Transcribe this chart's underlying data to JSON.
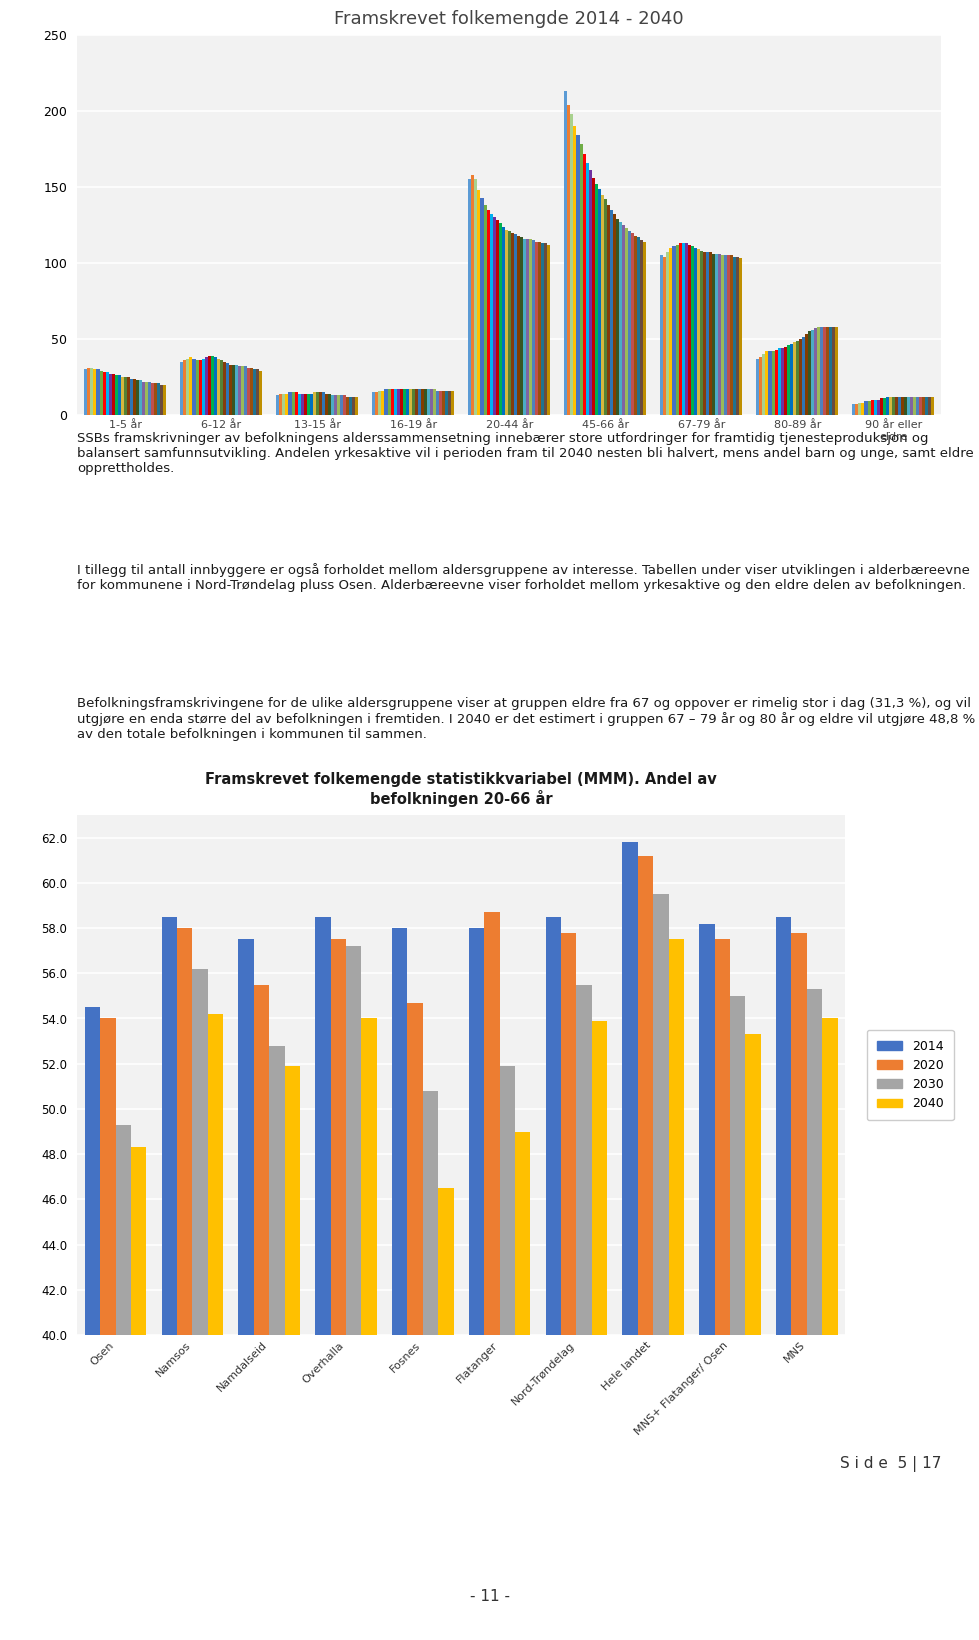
{
  "top_chart": {
    "title": "Framskrevet folkemengde 2014 - 2040",
    "categories": [
      "1-5 år",
      "6-12 år",
      "13-15 år",
      "16-19 år",
      "20-44 år",
      "45-66 år",
      "67-79 år",
      "80-89 år",
      "90 år eller\neldre"
    ],
    "ylim": [
      0,
      250
    ],
    "yticks": [
      0,
      50,
      100,
      150,
      200,
      250
    ],
    "num_bars_per_group": 27,
    "group_data": {
      "1-5 ar": [
        30,
        31,
        31,
        30,
        30,
        29,
        28,
        28,
        27,
        27,
        26,
        26,
        25,
        25,
        25,
        24,
        24,
        23,
        23,
        22,
        22,
        22,
        21,
        21,
        21,
        20,
        20
      ],
      "6-12 ar": [
        35,
        36,
        37,
        38,
        37,
        36,
        36,
        37,
        38,
        39,
        39,
        38,
        37,
        36,
        35,
        34,
        33,
        33,
        33,
        32,
        32,
        32,
        31,
        31,
        30,
        30,
        29
      ],
      "13-15 ar": [
        13,
        14,
        14,
        14,
        15,
        15,
        15,
        14,
        14,
        14,
        14,
        14,
        15,
        15,
        15,
        15,
        14,
        14,
        13,
        13,
        13,
        13,
        13,
        12,
        12,
        12,
        12
      ],
      "16-19 ar": [
        15,
        15,
        16,
        16,
        17,
        17,
        17,
        17,
        17,
        17,
        17,
        17,
        17,
        17,
        17,
        17,
        17,
        17,
        17,
        17,
        17,
        16,
        16,
        16,
        16,
        16,
        16
      ],
      "20-44 ar": [
        155,
        158,
        155,
        148,
        143,
        138,
        135,
        132,
        130,
        128,
        126,
        124,
        122,
        121,
        120,
        119,
        118,
        117,
        116,
        116,
        116,
        115,
        114,
        114,
        113,
        113,
        112
      ],
      "45-66 ar": [
        213,
        204,
        198,
        190,
        184,
        178,
        172,
        166,
        161,
        156,
        152,
        149,
        145,
        142,
        138,
        135,
        132,
        129,
        127,
        125,
        123,
        121,
        120,
        118,
        117,
        115,
        114
      ],
      "67-79 ar": [
        105,
        104,
        107,
        110,
        111,
        112,
        113,
        113,
        113,
        112,
        111,
        110,
        109,
        108,
        107,
        107,
        107,
        106,
        106,
        106,
        105,
        105,
        105,
        105,
        104,
        104,
        103
      ],
      "80-89 ar": [
        37,
        38,
        40,
        42,
        42,
        42,
        43,
        44,
        44,
        45,
        46,
        47,
        48,
        49,
        50,
        51,
        53,
        55,
        56,
        57,
        58,
        58,
        58,
        58,
        58,
        58,
        58
      ],
      "90 ar eldre": [
        7,
        7,
        8,
        8,
        9,
        9,
        10,
        10,
        10,
        11,
        11,
        12,
        12,
        12,
        12,
        12,
        12,
        12,
        12,
        12,
        12,
        12,
        12,
        12,
        12,
        12,
        12
      ]
    },
    "bar_colors": [
      "#5b9bd5",
      "#ed7d31",
      "#a9d18e",
      "#ffc000",
      "#4472c4",
      "#70ad47",
      "#ff0000",
      "#00b0f0",
      "#7030a0",
      "#c00000",
      "#00b050",
      "#0070c0",
      "#d6b83e",
      "#548235",
      "#843c0c",
      "#2e75b6",
      "#833c00",
      "#375623",
      "#4bacc6",
      "#8064a2",
      "#9bbb59",
      "#4f81bd",
      "#c0504d",
      "#9b4f0e",
      "#1f7391",
      "#6b4b3e",
      "#bf8f00"
    ]
  },
  "paragraph_text": [
    "SSBs framskrivninger av befolkningens alderssammensetning innebærer store utfordringer for framtidig tjenesteproduksjon og balansert samfunnsutvikling. Andelen yrkesaktive vil i perioden fram til 2040 nesten bli halvert, mens andel barn og unge, samt eldre opprettholdes.",
    "I tillegg til antall innbyggere er også forholdet mellom aldersgruppene av interesse. Tabellen under viser utviklingen i alderbæreevne for kommunene i Nord-Trøndelag pluss Osen. Alderbæreevne viser forholdet mellom yrkesaktive og den eldre delen av befolkningen.",
    "Befolkningsframskrivingene for de ulike aldersgruppene viser at gruppen eldre fra 67 og oppover er rimelig stor i dag (31,3 %), og vil utgjøre en enda større del av befolkningen i fremtiden. I 2040 er det estimert i gruppen 67 – 79 år og 80 år og eldre vil utgjøre 48,8 % av den totale befolkningen i kommunen til sammen."
  ],
  "bottom_chart": {
    "title": "Framskrevet folkemengde statistikkvariabel (MMM). Andel av\nbefolkningen 20-66 år",
    "categories": [
      "Osen",
      "Namsos",
      "Namdalseid",
      "Overhalla",
      "Fosnes",
      "Flatanger",
      "Nord-Trøndelag",
      "Hele landet",
      "MNS+ Flatanger/ Osen",
      "MNS"
    ],
    "years": [
      "2014",
      "2020",
      "2030",
      "2040"
    ],
    "colors": [
      "#4472c4",
      "#ed7d31",
      "#a5a5a5",
      "#ffc000"
    ],
    "ylim": [
      40.0,
      63.0
    ],
    "yticks": [
      40.0,
      42.0,
      44.0,
      46.0,
      48.0,
      50.0,
      52.0,
      54.0,
      56.0,
      58.0,
      60.0,
      62.0
    ],
    "data": {
      "2014": [
        54.5,
        58.5,
        57.5,
        58.5,
        58.0,
        58.0,
        58.5,
        61.8,
        58.2,
        58.5
      ],
      "2020": [
        54.0,
        58.0,
        55.5,
        57.5,
        54.7,
        58.7,
        57.8,
        61.2,
        57.5,
        57.8
      ],
      "2030": [
        49.3,
        56.2,
        52.8,
        57.2,
        50.8,
        51.9,
        55.5,
        59.5,
        55.0,
        55.3
      ],
      "2040": [
        48.3,
        54.2,
        51.9,
        54.0,
        46.5,
        49.0,
        53.9,
        57.5,
        53.3,
        54.0
      ]
    }
  },
  "footer_right": "S i d e  5 | 17",
  "footer_center": "- 11 -",
  "background_color": "#ffffff",
  "chart_bg": "#f2f2f2",
  "grid_color": "#ffffff"
}
